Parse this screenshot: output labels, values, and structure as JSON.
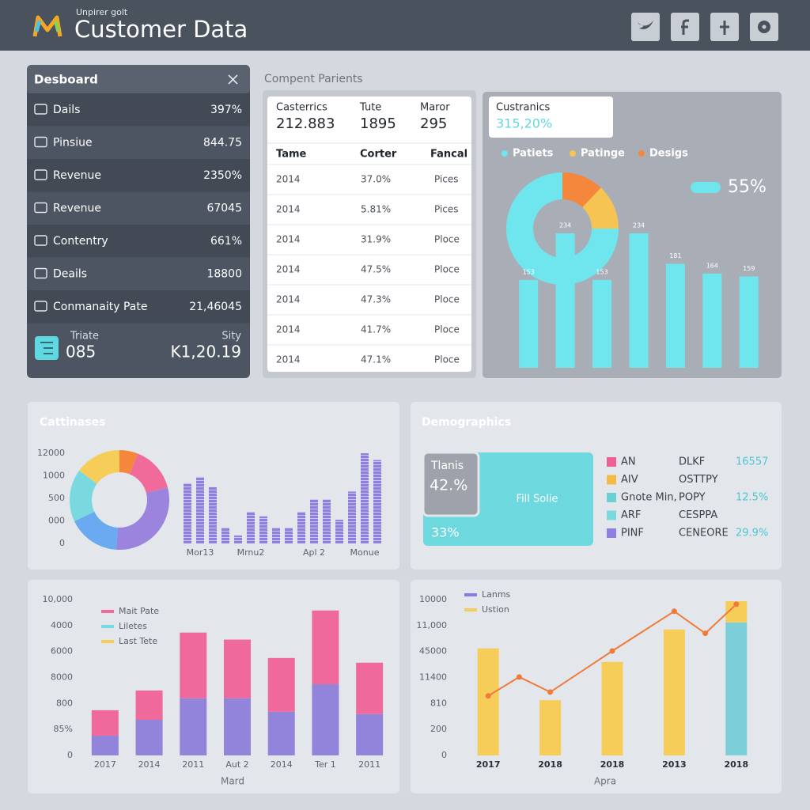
{
  "header": {
    "brand": "Unpirer golt",
    "title": "Customer Data"
  },
  "sidebar": {
    "title": "Desboard",
    "items": [
      {
        "label": "Dails",
        "value": "397%"
      },
      {
        "label": "Pinsiue",
        "value": "844.75"
      },
      {
        "label": "Revenue",
        "value": "2350%"
      },
      {
        "label": "Revenue",
        "value": "67045"
      },
      {
        "label": "Contentry",
        "value": "661%"
      },
      {
        "label": "Deails",
        "value": "18800"
      },
      {
        "label": "Conmanaity Pate",
        "value": "21,46045"
      }
    ],
    "footer": [
      {
        "label": "Triate",
        "value": "085"
      },
      {
        "label": "Sity",
        "value": "K1,20.19"
      }
    ]
  },
  "table_panel": {
    "label": "Compent Parients",
    "stats": [
      {
        "label": "Casterrics",
        "value": "212.883"
      },
      {
        "label": "Tute",
        "value": "1895"
      },
      {
        "label": "Maror",
        "value": "295"
      }
    ],
    "headers": [
      "Tame",
      "Corter",
      "Fancal"
    ],
    "rows": [
      [
        "2014",
        "37.0%",
        "Pices"
      ],
      [
        "2014",
        "5.81%",
        "Pices"
      ],
      [
        "2014",
        "31.9%",
        "Ploce"
      ],
      [
        "2014",
        "47.5%",
        "Ploce"
      ],
      [
        "2014",
        "47.3%",
        "Ploce"
      ],
      [
        "2014",
        "41.7%",
        "Ploce"
      ],
      [
        "2014",
        "47.1%",
        "Ploce"
      ]
    ]
  },
  "stat_card": {
    "label": "Custranics",
    "value": "315,20%"
  },
  "panels": {
    "middle_left": "Cattinases"
  },
  "demographics": {
    "title": "Demographics",
    "block": {
      "label": "Tlanis",
      "value": "42.%",
      "fill": "Fill Solie",
      "bottom": "33%"
    },
    "legend": [
      {
        "color": "#ef5f95",
        "name": "AN",
        "code": "DLKF",
        "value": "16557"
      },
      {
        "color": "#f5b945",
        "name": "AIV",
        "code": "OSTTPY"
      },
      {
        "color": "#6ccfd3",
        "name": "Gnote Min,",
        "code": "POPY",
        "value": "12.5%"
      },
      {
        "color": "#7ad9df",
        "name": "ARF",
        "code": "CESPPA"
      },
      {
        "color": "#8f7fe0",
        "name": "PINF",
        "code": "CENEORE",
        "value": "29.9%"
      }
    ]
  },
  "chart_data": [
    {
      "type": "pie",
      "donut": true,
      "direction": "counterclockwise",
      "categories": [
        "Patiets",
        "Patinge",
        "Desigs"
      ],
      "values": [
        75,
        13,
        12
      ],
      "colors": [
        "#6fe6ee",
        "#f5c453",
        "#f5873d"
      ],
      "legend": true,
      "annotation": "55%"
    },
    {
      "type": "bar",
      "values": [
        153,
        234,
        153,
        234,
        181,
        164,
        159
      ],
      "color": "#6fe6ee",
      "data_labels": true
    },
    {
      "type": "pie",
      "donut": true,
      "direction": "clockwise",
      "categories": [
        null,
        null,
        null,
        null,
        null,
        null
      ],
      "values": [
        6,
        15,
        30,
        17,
        17,
        15
      ],
      "colors": [
        "#f5873d",
        "#f06a9a",
        "#9b84dd",
        "#6aaaf0",
        "#7ad9df",
        "#f7cd5a"
      ],
      "legend": false
    },
    {
      "type": "bar",
      "striped": true,
      "categories": [
        null,
        "Mor13",
        null,
        null,
        null,
        "Mrnu2",
        null,
        null,
        null,
        null,
        "Apl 2",
        null,
        null,
        null,
        "Monue",
        null
      ],
      "values": [
        2.67,
        2.95,
        2.5,
        0.7,
        0.35,
        1.4,
        1.2,
        0.7,
        0.7,
        1.4,
        1.96,
        1.96,
        1.05,
        2.3,
        4.0,
        3.7
      ],
      "color": "#8f7fe0",
      "ylim": [
        0,
        4
      ],
      "yticks": [
        {
          "value": 4,
          "label": "12000"
        },
        {
          "value": 3,
          "label": "1000"
        },
        {
          "value": 2,
          "label": "500"
        },
        {
          "value": 1,
          "label": "000"
        },
        0
      ]
    },
    {
      "type": "bar",
      "stacked": true,
      "categories": [
        "2017",
        "2014",
        "2011",
        "Aut 2",
        "2014",
        "Ter 1",
        "2011"
      ],
      "series": [
        {
          "color": "#9283db",
          "values": [
            0.76,
            1.37,
            2.2,
            2.2,
            1.68,
            2.74,
            1.59
          ]
        },
        {
          "color": "#ef6a9b",
          "values": [
            0.98,
            1.13,
            2.53,
            2.26,
            2.07,
            2.84,
            1.98
          ]
        }
      ],
      "ylim": [
        0,
        6
      ],
      "yticks": [
        0,
        {
          "value": 1,
          "label": "85%"
        },
        {
          "value": 2,
          "label": "800"
        },
        {
          "value": 3,
          "label": "8000"
        },
        {
          "value": 4,
          "label": "6000"
        },
        {
          "value": 5,
          "label": "4000"
        },
        {
          "value": 6,
          "label": "10,000"
        }
      ],
      "legend": [
        {
          "name": "Mait Pate",
          "color": "#ef6a9b"
        },
        {
          "name": "Liletes",
          "color": "#7ad9df"
        },
        {
          "name": "Last Tete",
          "color": "#f7cd5a"
        }
      ],
      "xlabel": "Mard"
    },
    {
      "type": "combo",
      "categories": [
        "2017",
        "2018",
        "2018",
        "2013",
        "2018"
      ],
      "xlim": [
        -0.5,
        4.5
      ],
      "ylim": [
        0,
        6
      ],
      "yticks": [
        0,
        {
          "value": 1,
          "label": "200"
        },
        {
          "value": 2,
          "label": "810"
        },
        {
          "value": 3,
          "label": "11400"
        },
        {
          "value": 4,
          "label": "45000"
        },
        {
          "value": 5,
          "label": "11,000"
        },
        {
          "value": 6,
          "label": "10000"
        }
      ],
      "series": [
        {
          "type": "bar",
          "color": "#7ccfd9",
          "values": [
            null,
            null,
            null,
            null,
            5.12
          ]
        },
        {
          "type": "bar",
          "color": "#f7cd5a",
          "values": [
            4.12,
            2.13,
            3.6,
            4.85,
            0.82
          ]
        },
        {
          "type": "line",
          "color": "#f07a3a",
          "x": [
            0,
            0.5,
            1,
            2,
            3,
            3.5,
            4
          ],
          "values": [
            2.29,
            3.02,
            2.44,
            4.02,
            5.55,
            4.7,
            5.82
          ]
        }
      ],
      "legend": [
        {
          "name": "Lanms",
          "color": "#8a7ce0"
        },
        {
          "name": "Ustion",
          "color": "#f7cd5a"
        }
      ],
      "xlabel": "Apra"
    }
  ]
}
